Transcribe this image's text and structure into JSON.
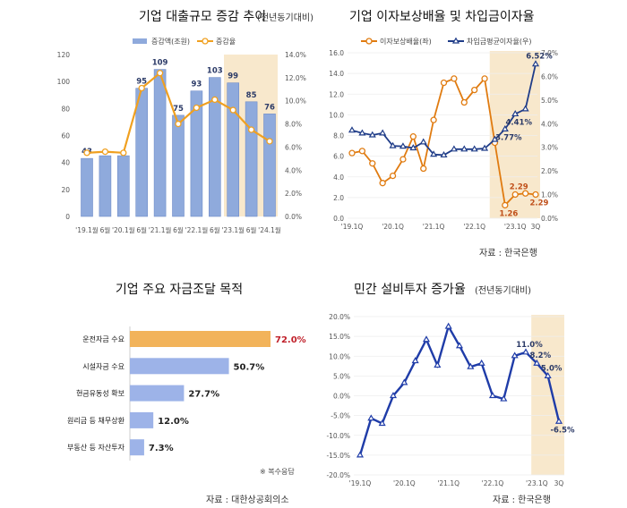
{
  "chart_data": [
    {
      "type": "bar",
      "title": "기업 대출규모 증감 추이",
      "subtitle": "(전년동기대비)",
      "categories": [
        "'19.1월",
        "6월",
        "'20.1월",
        "6월",
        "'21.1월",
        "6월",
        "'22.1월",
        "6월",
        "'23.1월",
        "6월",
        "'24.1월"
      ],
      "series": [
        {
          "name": "증감액(조원)",
          "type": "bar",
          "axis": "left",
          "values": [
            43,
            45,
            45,
            95,
            109,
            75,
            93,
            103,
            99,
            85,
            76
          ],
          "labels": [
            "43",
            "",
            "",
            "95",
            "109",
            "75",
            "93",
            "103",
            "99",
            "85",
            "76"
          ]
        },
        {
          "name": "증감율",
          "type": "line",
          "axis": "right",
          "values": [
            5.5,
            5.6,
            5.5,
            11.1,
            12.4,
            8.0,
            9.4,
            10.1,
            9.2,
            7.5,
            6.5
          ]
        }
      ],
      "ylim": [
        0,
        120
      ],
      "yticks": [
        "0",
        "20",
        "40",
        "60",
        "80",
        "100",
        "120"
      ],
      "y2lim": [
        0,
        14
      ],
      "y2ticks": [
        "0.0%",
        "2.0%",
        "4.0%",
        "6.0%",
        "8.0%",
        "10.0%",
        "12.0%",
        "14.0%"
      ],
      "highlight_from_index": 8,
      "colors": {
        "bar": "#8faadc",
        "line": "#f0a020",
        "highlight": "#f8e8cc"
      }
    },
    {
      "type": "line",
      "title": "기업 이자보상배율 및 차입금이자율",
      "x_count": 19,
      "xticks": [
        {
          "i": 0,
          "label": "'19.1Q"
        },
        {
          "i": 4,
          "label": "'20.1Q"
        },
        {
          "i": 8,
          "label": "'21.1Q"
        },
        {
          "i": 12,
          "label": "'22.1Q"
        },
        {
          "i": 16,
          "label": "'23.1Q"
        },
        {
          "i": 18,
          "label": "3Q"
        }
      ],
      "series": [
        {
          "name": "이자보상배율(좌)",
          "axis": "left",
          "marker": "circle",
          "color": "#e07b10",
          "values": [
            6.3,
            6.5,
            5.3,
            3.4,
            4.1,
            5.7,
            7.9,
            4.8,
            9.5,
            13.1,
            13.5,
            11.2,
            12.4,
            13.5,
            7.3,
            1.26,
            2.29,
            2.4,
            2.29
          ],
          "labels": [
            {
              "i": 15,
              "text": "1.26",
              "pos": "below"
            },
            {
              "i": 16,
              "text": "2.29",
              "pos": "above"
            },
            {
              "i": 18,
              "text": "2.29",
              "pos": "below"
            }
          ]
        },
        {
          "name": "차입금평균이자율(우)",
          "axis": "right",
          "marker": "triangle",
          "color": "#1f3c88",
          "values": [
            3.72,
            3.6,
            3.52,
            3.6,
            3.06,
            3.04,
            2.97,
            3.22,
            2.7,
            2.67,
            2.92,
            2.92,
            2.92,
            2.95,
            3.33,
            3.77,
            4.41,
            4.62,
            6.52
          ],
          "labels": [
            {
              "i": 15,
              "text": "3.77%",
              "pos": "below"
            },
            {
              "i": 16,
              "text": "4.41%",
              "pos": "below"
            },
            {
              "i": 18,
              "text": "6.52%",
              "pos": "above"
            }
          ]
        }
      ],
      "ylim": [
        0,
        16
      ],
      "yticks": [
        "0.0",
        "2.0",
        "4.0",
        "6.0",
        "8.0",
        "10.0",
        "12.0",
        "14.0",
        "16.0"
      ],
      "y2lim": [
        0,
        7
      ],
      "y2ticks": [
        "0.0%",
        "1.0%",
        "2.0%",
        "3.0%",
        "4.0%",
        "5.0%",
        "6.0%",
        "7.0%"
      ],
      "highlight_from_index": 14,
      "source": "자료 : 한국은행"
    },
    {
      "type": "bar",
      "orientation": "horizontal",
      "title": "기업 주요 자금조달 목적",
      "categories": [
        "운전자금 수요",
        "시설자금 수요",
        "현금유동성 확보",
        "원리금 등 채무상환",
        "부동산 등 자산투자"
      ],
      "values": [
        72.0,
        50.7,
        27.7,
        12.0,
        7.3
      ],
      "labels": [
        "72.0%",
        "50.7%",
        "27.7%",
        "12.0%",
        "7.3%"
      ],
      "colors": {
        "highlight": "#f2b35a",
        "bar": "#9db3e8",
        "highlight_label": "#c0202a"
      },
      "note": "※ 복수응답",
      "source": "자료 : 대한상공회의소"
    },
    {
      "type": "line",
      "title": "민간 설비투자 증가율",
      "subtitle": "(전년동기대비)",
      "x_count": 19,
      "xticks": [
        {
          "i": 0,
          "label": "'19.1Q"
        },
        {
          "i": 4,
          "label": "'20.1Q"
        },
        {
          "i": 8,
          "label": "'21.1Q"
        },
        {
          "i": 12,
          "label": "'22.1Q"
        },
        {
          "i": 16,
          "label": "'23.1Q"
        },
        {
          "i": 18,
          "label": "3Q"
        }
      ],
      "series": [
        {
          "name": "민간 설비투자 증가율",
          "color": "#1f3ca8",
          "marker": "triangle",
          "values": [
            -15.0,
            -5.7,
            -7.0,
            0.0,
            3.3,
            8.8,
            14.2,
            7.7,
            17.5,
            12.6,
            7.3,
            8.2,
            0.0,
            -0.8,
            10.1,
            11.0,
            8.2,
            5.0,
            -6.5
          ],
          "labels": [
            {
              "i": 15,
              "text": "11.0%",
              "pos": "above"
            },
            {
              "i": 16,
              "text": "8.2%",
              "pos": "above"
            },
            {
              "i": 17,
              "text": "5.0%",
              "pos": "above"
            },
            {
              "i": 18,
              "text": "-6.5%",
              "pos": "below"
            }
          ]
        }
      ],
      "ylim": [
        -20,
        20
      ],
      "yticks": [
        "-20.0%",
        "-15.0%",
        "-10.0%",
        "-5.0%",
        "0.0%",
        "5.0%",
        "10.0%",
        "15.0%",
        "20.0%"
      ],
      "highlight_from_index": 16,
      "source": "자료 : 한국은행"
    }
  ]
}
